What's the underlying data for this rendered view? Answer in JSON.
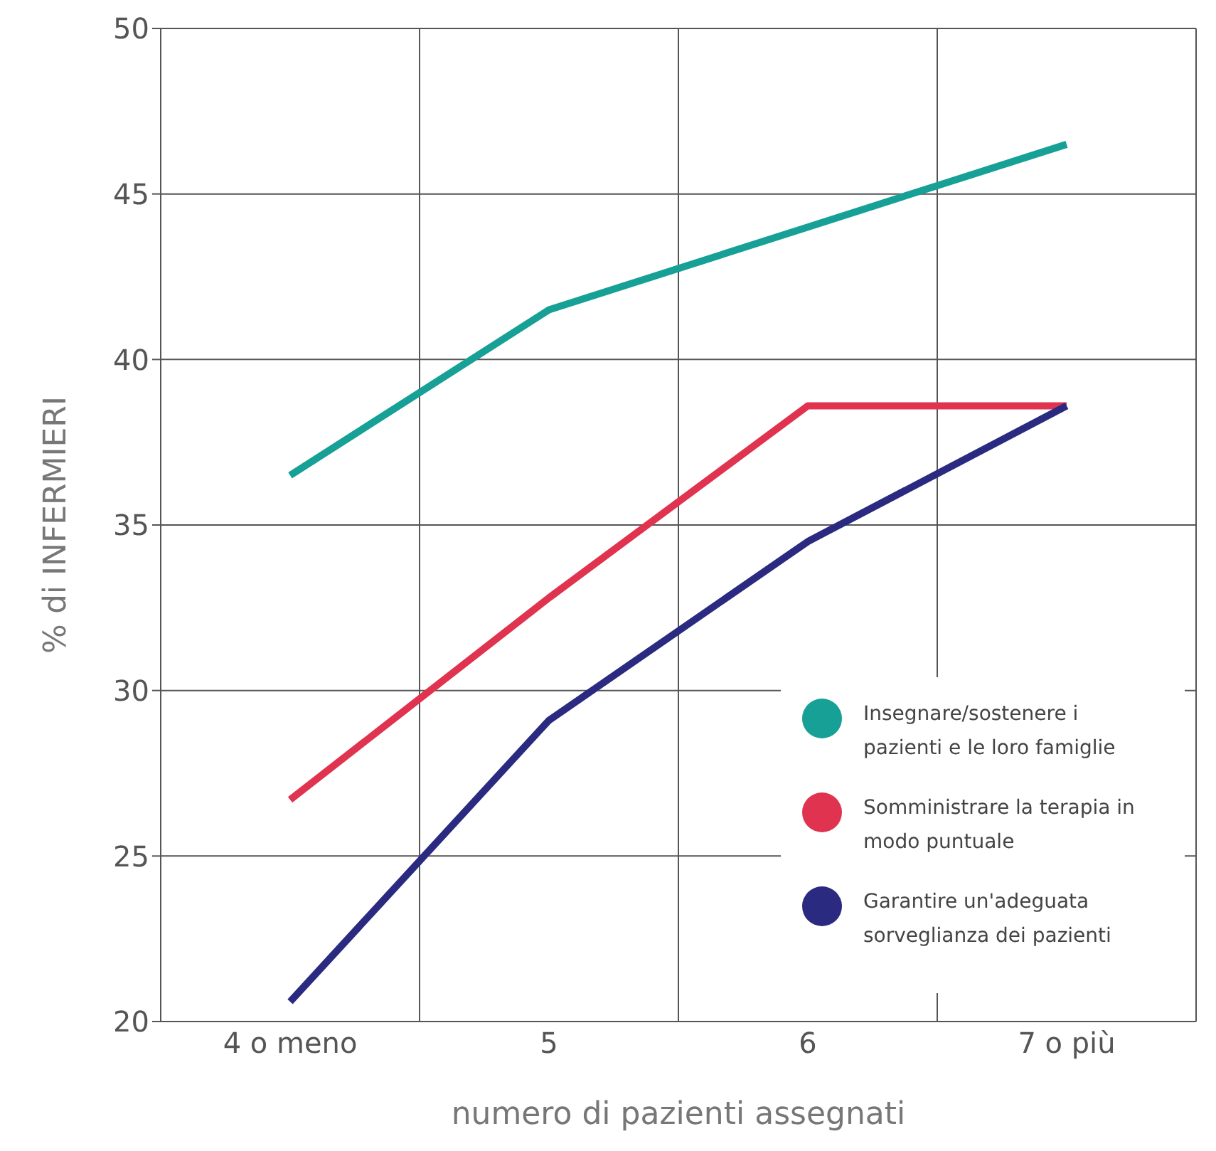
{
  "chart_data": {
    "type": "line",
    "xlabel": "numero di pazienti assegnati",
    "ylabel": "% di INFERMIERI",
    "categories": [
      "4  o meno",
      "5",
      "6",
      "7   o più"
    ],
    "series": [
      {
        "name": "Insegnare/sostenere i pazienti e le loro famiglie",
        "color": "#16a096",
        "values": [
          36.5,
          41.5,
          44,
          46.5
        ]
      },
      {
        "name": "Somministrare la terapia in modo puntuale",
        "color": "#e0334f",
        "values": [
          26.7,
          32.8,
          38.6,
          38.6
        ]
      },
      {
        "name": "Garantire un'adeguata sorveglianza dei pazienti",
        "color": "#2a2a80",
        "values": [
          20.6,
          29.1,
          34.5,
          38.6
        ]
      }
    ],
    "ylim": [
      20,
      50
    ],
    "yticks": [
      20,
      25,
      30,
      35,
      40,
      45,
      50
    ],
    "grid": true,
    "legend": "bottom right",
    "marker": "none",
    "line_style": "solid"
  }
}
